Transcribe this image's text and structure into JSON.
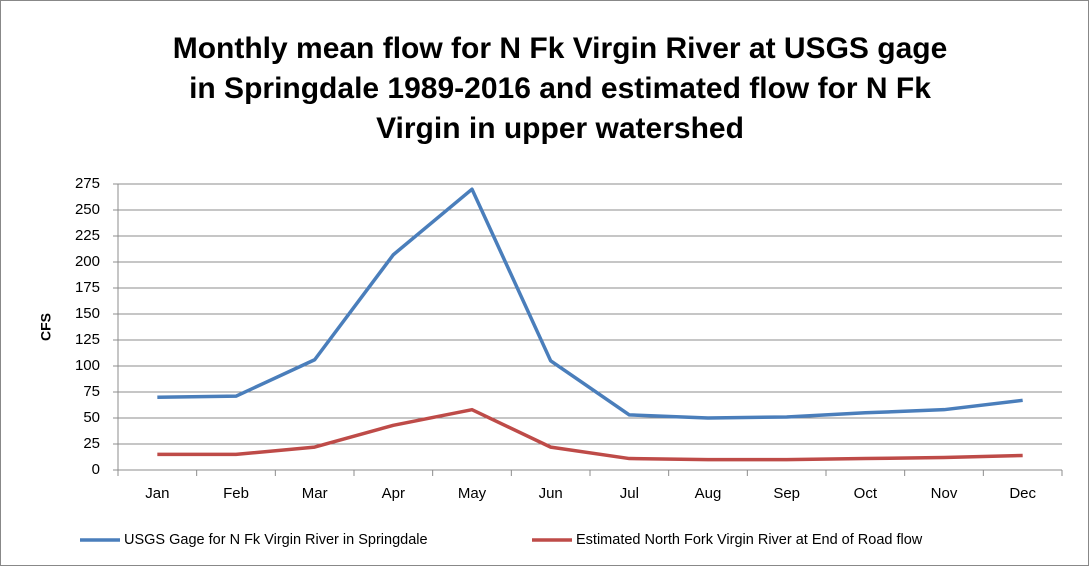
{
  "chart_data": {
    "type": "line",
    "title": [
      "Monthly mean flow for N Fk Virgin River at USGS gage",
      "in Springdale 1989-2016 and estimated flow for N Fk",
      "Virgin in upper watershed"
    ],
    "y_label": "CFS",
    "categories": [
      "Jan",
      "Feb",
      "Mar",
      "Apr",
      "May",
      "Jun",
      "Jul",
      "Aug",
      "Sep",
      "Oct",
      "Nov",
      "Dec"
    ],
    "series": [
      {
        "name": "USGS Gage for N Fk Virgin River in Springdale",
        "color": "#4a7ebb",
        "values": [
          70,
          71,
          106,
          207,
          270,
          105,
          53,
          50,
          51,
          55,
          58,
          67
        ]
      },
      {
        "name": "Estimated North Fork Virgin River at End of Road flow",
        "color": "#be4b48",
        "values": [
          15,
          15,
          22,
          43,
          58,
          22,
          11,
          10,
          10,
          11,
          12,
          14
        ]
      }
    ],
    "ylim": [
      0,
      275
    ],
    "yticks": [
      0,
      25,
      50,
      75,
      100,
      125,
      150,
      175,
      200,
      225,
      250,
      275
    ],
    "grid": true,
    "legend": "bottom"
  }
}
